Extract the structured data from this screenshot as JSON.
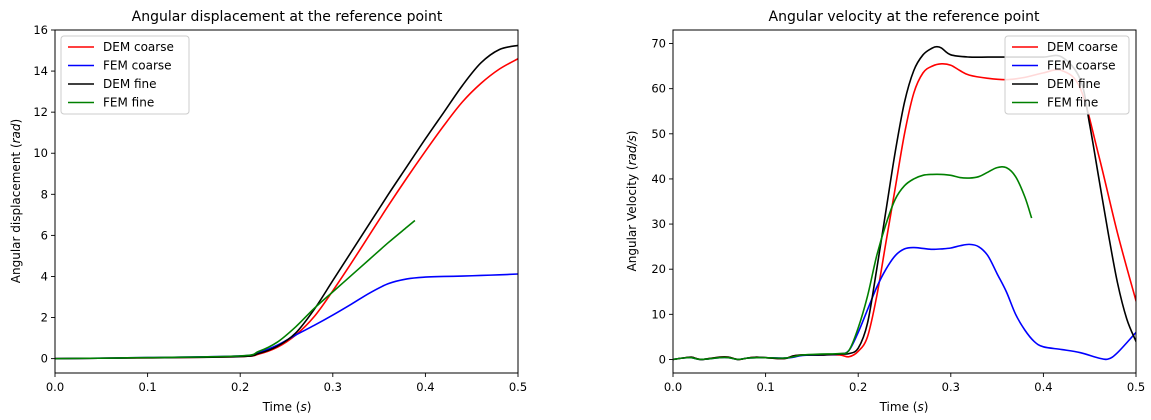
{
  "chart_data": [
    {
      "type": "line",
      "title": "Angular displacement at the reference point",
      "xlabel": "Time",
      "xlabel_unit": "s",
      "ylabel": "Angular displacement",
      "ylabel_unit": "rad",
      "xlim": [
        0.0,
        0.5
      ],
      "ylim": [
        -0.7,
        16
      ],
      "xticks": [
        "0.0",
        "0.1",
        "0.2",
        "0.3",
        "0.4",
        "0.5"
      ],
      "yticks": [
        "0",
        "2",
        "4",
        "6",
        "8",
        "10",
        "12",
        "14",
        "16"
      ],
      "grid": false,
      "legend": "upper-left",
      "series": [
        {
          "name": "DEM coarse",
          "color": "#ff0000",
          "x": [
            0.0,
            0.1,
            0.2,
            0.22,
            0.24,
            0.26,
            0.28,
            0.3,
            0.32,
            0.34,
            0.36,
            0.38,
            0.4,
            0.42,
            0.44,
            0.46,
            0.48,
            0.5
          ],
          "y": [
            0.0,
            0.04,
            0.1,
            0.22,
            0.55,
            1.15,
            2.05,
            3.3,
            4.65,
            6.05,
            7.45,
            8.8,
            10.1,
            11.35,
            12.5,
            13.4,
            14.1,
            14.6
          ]
        },
        {
          "name": "FEM coarse",
          "color": "#0000ff",
          "x": [
            0.0,
            0.1,
            0.2,
            0.22,
            0.24,
            0.26,
            0.28,
            0.3,
            0.32,
            0.34,
            0.36,
            0.38,
            0.4,
            0.42,
            0.44,
            0.46,
            0.48,
            0.5
          ],
          "y": [
            0.0,
            0.05,
            0.13,
            0.3,
            0.65,
            1.15,
            1.62,
            2.12,
            2.65,
            3.2,
            3.65,
            3.88,
            3.97,
            4.0,
            4.02,
            4.05,
            4.08,
            4.12
          ]
        },
        {
          "name": "DEM fine",
          "color": "#000000",
          "x": [
            0.0,
            0.1,
            0.2,
            0.22,
            0.24,
            0.26,
            0.28,
            0.3,
            0.32,
            0.34,
            0.36,
            0.38,
            0.4,
            0.42,
            0.44,
            0.46,
            0.48,
            0.5
          ],
          "y": [
            0.0,
            0.04,
            0.1,
            0.25,
            0.6,
            1.25,
            2.4,
            3.8,
            5.2,
            6.6,
            8.0,
            9.35,
            10.7,
            12.0,
            13.3,
            14.4,
            15.05,
            15.25
          ]
        },
        {
          "name": "FEM fine",
          "color": "#008000",
          "x": [
            0.0,
            0.1,
            0.2,
            0.22,
            0.24,
            0.26,
            0.28,
            0.3,
            0.32,
            0.34,
            0.36,
            0.38,
            0.388
          ],
          "y": [
            0.0,
            0.05,
            0.13,
            0.35,
            0.8,
            1.55,
            2.45,
            3.25,
            4.05,
            4.85,
            5.65,
            6.4,
            6.7
          ]
        }
      ]
    },
    {
      "type": "line",
      "title": "Angular velocity at the reference point",
      "xlabel": "Time",
      "xlabel_unit": "s",
      "ylabel": "Angular Velocity",
      "ylabel_unit": "rad/s",
      "xlim": [
        0.0,
        0.5
      ],
      "ylim": [
        -3,
        73
      ],
      "xticks": [
        "0.0",
        "0.1",
        "0.2",
        "0.3",
        "0.4",
        "0.5"
      ],
      "yticks": [
        "0",
        "10",
        "20",
        "30",
        "40",
        "50",
        "60",
        "70"
      ],
      "grid": false,
      "legend": "upper-right",
      "series": [
        {
          "name": "DEM coarse",
          "color": "#ff0000",
          "x": [
            0.0,
            0.01,
            0.02,
            0.03,
            0.05,
            0.06,
            0.07,
            0.08,
            0.09,
            0.1,
            0.12,
            0.13,
            0.14,
            0.16,
            0.18,
            0.19,
            0.2,
            0.21,
            0.22,
            0.23,
            0.24,
            0.25,
            0.26,
            0.27,
            0.28,
            0.29,
            0.3,
            0.31,
            0.32,
            0.34,
            0.36,
            0.38,
            0.4,
            0.42,
            0.44,
            0.46,
            0.48,
            0.5
          ],
          "y": [
            0.0,
            0.3,
            0.5,
            0.0,
            0.5,
            0.5,
            0.0,
            0.3,
            0.5,
            0.4,
            0.2,
            0.8,
            1.0,
            1.0,
            1.0,
            0.6,
            1.8,
            5.0,
            14.0,
            26.0,
            38.0,
            50.0,
            59.0,
            63.5,
            65.0,
            65.5,
            65.2,
            64.0,
            63.0,
            62.3,
            62.0,
            62.5,
            63.5,
            64.0,
            60.0,
            45.0,
            28.0,
            13.0
          ]
        },
        {
          "name": "FEM coarse",
          "color": "#0000ff",
          "x": [
            0.0,
            0.01,
            0.02,
            0.03,
            0.05,
            0.06,
            0.07,
            0.08,
            0.09,
            0.1,
            0.12,
            0.13,
            0.14,
            0.16,
            0.18,
            0.19,
            0.2,
            0.21,
            0.22,
            0.23,
            0.24,
            0.25,
            0.26,
            0.27,
            0.28,
            0.29,
            0.3,
            0.31,
            0.32,
            0.33,
            0.34,
            0.35,
            0.36,
            0.37,
            0.38,
            0.39,
            0.4,
            0.42,
            0.44,
            0.46,
            0.47,
            0.48,
            0.5
          ],
          "y": [
            0.0,
            0.3,
            0.4,
            0.0,
            0.4,
            0.4,
            0.0,
            0.3,
            0.4,
            0.4,
            0.3,
            0.5,
            0.9,
            1.0,
            1.2,
            2.0,
            6.0,
            11.0,
            16.0,
            20.0,
            23.0,
            24.5,
            24.8,
            24.6,
            24.4,
            24.5,
            24.7,
            25.2,
            25.5,
            25.0,
            23.0,
            19.0,
            15.0,
            10.0,
            6.5,
            4.0,
            2.8,
            2.2,
            1.5,
            0.3,
            0.1,
            1.5,
            6.0
          ]
        },
        {
          "name": "DEM fine",
          "color": "#000000",
          "x": [
            0.0,
            0.01,
            0.02,
            0.03,
            0.05,
            0.06,
            0.07,
            0.08,
            0.09,
            0.1,
            0.12,
            0.13,
            0.14,
            0.16,
            0.18,
            0.19,
            0.2,
            0.21,
            0.22,
            0.23,
            0.24,
            0.25,
            0.26,
            0.27,
            0.28,
            0.285,
            0.29,
            0.3,
            0.32,
            0.34,
            0.36,
            0.38,
            0.4,
            0.42,
            0.44,
            0.45,
            0.46,
            0.47,
            0.48,
            0.49,
            0.5
          ],
          "y": [
            0.0,
            0.3,
            0.5,
            0.0,
            0.5,
            0.5,
            0.0,
            0.3,
            0.5,
            0.4,
            0.2,
            0.8,
            1.0,
            1.0,
            1.2,
            1.3,
            2.5,
            8.0,
            20.0,
            33.0,
            46.0,
            57.0,
            64.0,
            67.5,
            69.0,
            69.3,
            69.0,
            67.5,
            67.0,
            67.0,
            67.0,
            67.0,
            67.0,
            67.0,
            62.0,
            52.0,
            40.0,
            28.0,
            17.0,
            9.0,
            4.0
          ]
        },
        {
          "name": "FEM fine",
          "color": "#008000",
          "x": [
            0.0,
            0.01,
            0.02,
            0.03,
            0.05,
            0.06,
            0.07,
            0.08,
            0.09,
            0.1,
            0.12,
            0.13,
            0.14,
            0.16,
            0.18,
            0.19,
            0.2,
            0.21,
            0.22,
            0.23,
            0.24,
            0.25,
            0.26,
            0.27,
            0.28,
            0.29,
            0.3,
            0.31,
            0.32,
            0.33,
            0.34,
            0.35,
            0.36,
            0.37,
            0.38,
            0.387
          ],
          "y": [
            0.0,
            0.3,
            0.4,
            0.0,
            0.4,
            0.4,
            0.0,
            0.3,
            0.4,
            0.4,
            0.3,
            0.6,
            1.0,
            1.2,
            1.3,
            2.0,
            7.0,
            14.0,
            23.0,
            30.0,
            35.5,
            38.5,
            40.0,
            40.8,
            41.0,
            41.0,
            40.8,
            40.3,
            40.2,
            40.5,
            41.5,
            42.5,
            42.5,
            40.5,
            36.0,
            31.5
          ]
        }
      ]
    }
  ]
}
